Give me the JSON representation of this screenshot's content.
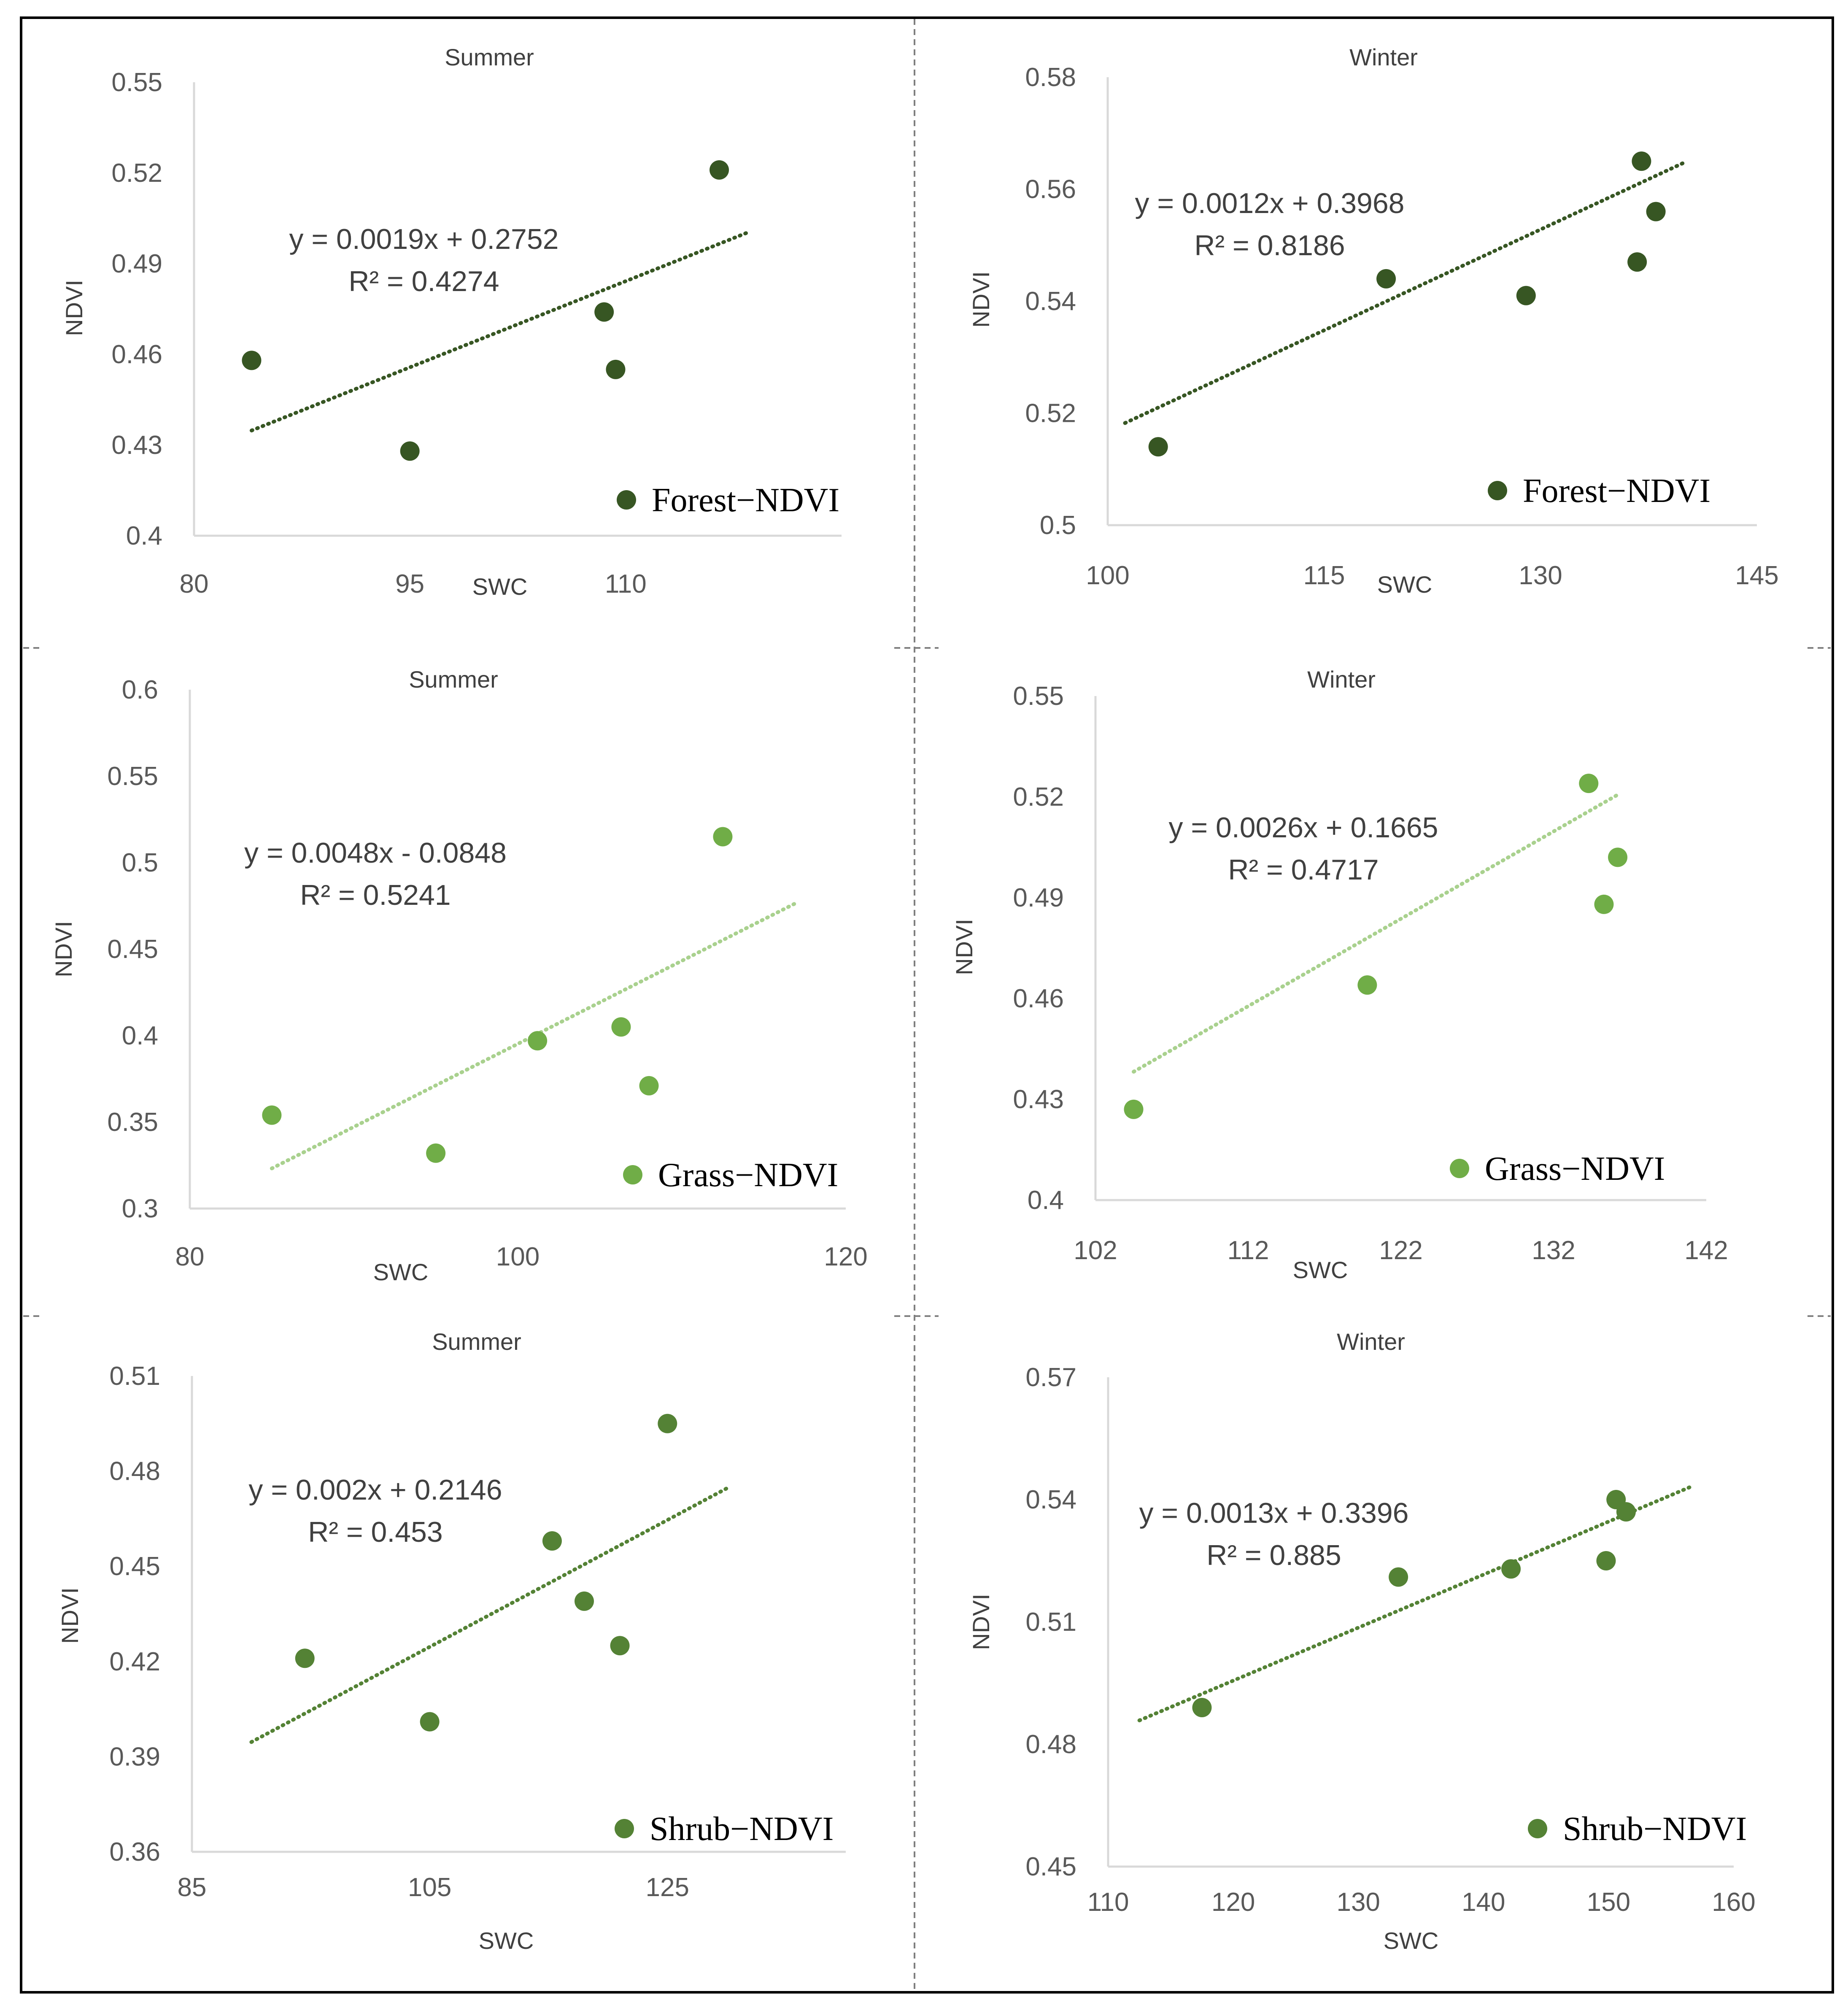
{
  "colors": {
    "forest": "#375623",
    "grass_point": "#70AD47",
    "grass_trend": "#A9D18E",
    "shrub": "#548235",
    "axis": "#d9d9d9",
    "border": "#000000"
  },
  "chart_data": [
    {
      "type": "scatter",
      "title": "Summer",
      "xlabel": "SWC",
      "ylabel": "NDVI",
      "legend": "Forest−NDVI",
      "color_key": "forest",
      "trend_color_key": "forest",
      "xlim": [
        80,
        125
      ],
      "ylim": [
        0.4,
        0.55
      ],
      "xticks": [
        "80",
        "95",
        "110"
      ],
      "xtick_values": [
        80,
        95,
        110
      ],
      "yticks": [
        "0.4",
        "0.43",
        "0.46",
        "0.49",
        "0.52",
        "0.55"
      ],
      "ytick_values": [
        0.4,
        0.43,
        0.46,
        0.49,
        0.52,
        0.55
      ],
      "x": [
        84,
        95,
        108.5,
        109.3,
        116.5
      ],
      "y": [
        0.458,
        0.428,
        0.474,
        0.455,
        0.521
      ],
      "trendline": {
        "equation": "y = 0.0019x + 0.2752",
        "r2": "R² = 0.4274",
        "x_range": [
          84,
          118.5
        ],
        "slope": 0.0019,
        "intercept": 0.2752
      }
    },
    {
      "type": "scatter",
      "title": "Winter",
      "xlabel": "SWC",
      "ylabel": "NDVI",
      "legend": "Forest−NDVI",
      "color_key": "forest",
      "trend_color_key": "forest",
      "xlim": [
        100,
        145
      ],
      "ylim": [
        0.5,
        0.58
      ],
      "xticks": [
        "100",
        "115",
        "130",
        "145"
      ],
      "xtick_values": [
        100,
        115,
        130,
        145
      ],
      "yticks": [
        "0.5",
        "0.52",
        "0.54",
        "0.56",
        "0.58"
      ],
      "ytick_values": [
        0.5,
        0.52,
        0.54,
        0.56,
        0.58
      ],
      "x": [
        103.5,
        119.3,
        129,
        136.7,
        137,
        138
      ],
      "y": [
        0.514,
        0.544,
        0.541,
        0.547,
        0.565,
        0.556
      ],
      "trendline": {
        "equation": "y = 0.0012x + 0.3968",
        "r2": "R² = 0.8186",
        "x_range": [
          101.2,
          140
        ],
        "slope": 0.0012,
        "intercept": 0.3968
      }
    },
    {
      "type": "scatter",
      "title": "Summer",
      "xlabel": "SWC",
      "ylabel": "NDVI",
      "legend": "Grass−NDVI",
      "color_key": "grass_point",
      "trend_color_key": "grass_trend",
      "xlim": [
        80,
        120
      ],
      "ylim": [
        0.3,
        0.6
      ],
      "xticks": [
        "80",
        "100",
        "120"
      ],
      "xtick_values": [
        80,
        100,
        120
      ],
      "yticks": [
        "0.3",
        "0.35",
        "0.4",
        "0.45",
        "0.5",
        "0.55",
        "0.6"
      ],
      "ytick_values": [
        0.3,
        0.35,
        0.4,
        0.45,
        0.5,
        0.55,
        0.6
      ],
      "x": [
        85,
        95,
        101.2,
        106.3,
        108,
        112.5
      ],
      "y": [
        0.354,
        0.332,
        0.397,
        0.405,
        0.371,
        0.515
      ],
      "trendline": {
        "equation": "y = 0.0048x - 0.0848",
        "r2": "R² = 0.5241",
        "x_range": [
          85,
          117
        ],
        "slope": 0.0048,
        "intercept": -0.0848
      }
    },
    {
      "type": "scatter",
      "title": "Winter",
      "xlabel": "SWC",
      "ylabel": "NDVI",
      "legend": "Grass−NDVI",
      "color_key": "grass_point",
      "trend_color_key": "grass_trend",
      "xlim": [
        102,
        142
      ],
      "ylim": [
        0.4,
        0.55
      ],
      "xticks": [
        "102",
        "112",
        "122",
        "132",
        "142"
      ],
      "xtick_values": [
        102,
        112,
        122,
        132,
        142
      ],
      "yticks": [
        "0.4",
        "0.43",
        "0.46",
        "0.49",
        "0.52",
        "0.55"
      ],
      "ytick_values": [
        0.4,
        0.43,
        0.46,
        0.49,
        0.52,
        0.55
      ],
      "x": [
        104.5,
        119.8,
        134.3,
        135.3,
        136.2
      ],
      "y": [
        0.427,
        0.464,
        0.524,
        0.488,
        0.502
      ],
      "trendline": {
        "equation": "y = 0.0026x + 0.1665",
        "r2": "R² = 0.4717",
        "x_range": [
          104.5,
          136.2
        ],
        "slope": 0.0026,
        "intercept": 0.1665
      }
    },
    {
      "type": "scatter",
      "title": "Summer",
      "xlabel": "SWC",
      "ylabel": "NDVI",
      "legend": "Shrub−NDVI",
      "color_key": "shrub",
      "trend_color_key": "shrub",
      "xlim": [
        85,
        140
      ],
      "ylim": [
        0.36,
        0.51
      ],
      "xticks": [
        "85",
        "105",
        "125"
      ],
      "xtick_values": [
        85,
        105,
        125
      ],
      "yticks": [
        "0.36",
        "0.39",
        "0.42",
        "0.45",
        "0.48",
        "0.51"
      ],
      "ytick_values": [
        0.36,
        0.39,
        0.42,
        0.45,
        0.48,
        0.51
      ],
      "x": [
        94.5,
        105,
        115.3,
        118,
        121,
        125
      ],
      "y": [
        0.421,
        0.401,
        0.458,
        0.439,
        0.425,
        0.495
      ],
      "trendline": {
        "equation": "y = 0.002x + 0.2146",
        "r2": "R² = 0.453",
        "x_range": [
          90,
          130
        ],
        "slope": 0.002,
        "intercept": 0.2146
      }
    },
    {
      "type": "scatter",
      "title": "Winter",
      "xlabel": "SWC",
      "ylabel": "NDVI",
      "legend": "Shrub−NDVI",
      "color_key": "shrub",
      "trend_color_key": "shrub",
      "xlim": [
        110,
        160
      ],
      "ylim": [
        0.45,
        0.57
      ],
      "xticks": [
        "110",
        "120",
        "130",
        "140",
        "150",
        "160"
      ],
      "xtick_values": [
        110,
        120,
        130,
        140,
        150,
        160
      ],
      "yticks": [
        "0.45",
        "0.48",
        "0.51",
        "0.54",
        "0.57"
      ],
      "ytick_values": [
        0.45,
        0.48,
        0.51,
        0.54,
        0.57
      ],
      "x": [
        117.5,
        133.2,
        142.2,
        149.8,
        150.6,
        151.4
      ],
      "y": [
        0.489,
        0.521,
        0.523,
        0.525,
        0.54,
        0.537
      ],
      "trendline": {
        "equation": "y = 0.0013x + 0.3396",
        "r2": "R² = 0.885",
        "x_range": [
          112.5,
          156.5
        ],
        "slope": 0.0013,
        "intercept": 0.3396
      }
    }
  ]
}
